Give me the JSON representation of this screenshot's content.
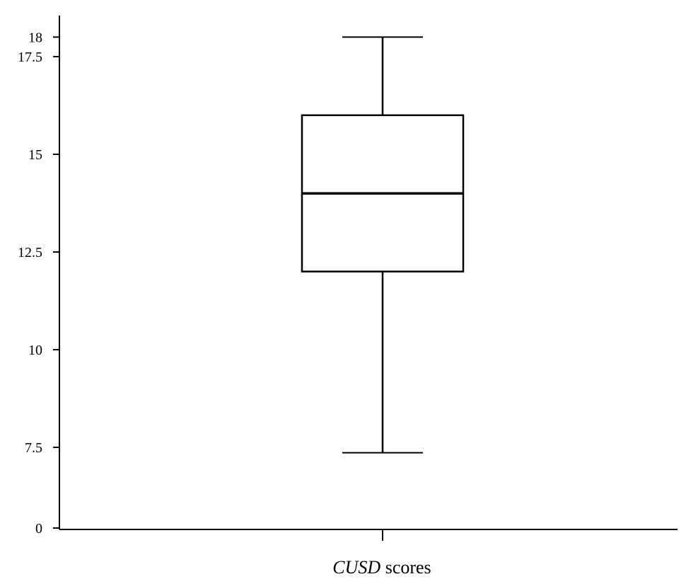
{
  "chart_data": {
    "type": "box",
    "title": "",
    "ylabel": "",
    "xlabel": {
      "italic": "CUSD",
      "rest": " scores"
    },
    "y_ticks": [
      {
        "value": 0,
        "label": "0"
      },
      {
        "value": 7.5,
        "label": "7.5"
      },
      {
        "value": 10,
        "label": "10"
      },
      {
        "value": 12.5,
        "label": "12.5"
      },
      {
        "value": 15,
        "label": "15"
      },
      {
        "value": 17.5,
        "label": "17.5"
      },
      {
        "value": 18,
        "label": "18"
      }
    ],
    "box": {
      "whisker_low": 7,
      "q1": 12,
      "median": 14,
      "q3": 16,
      "whisker_high": 18
    },
    "grid": false,
    "legend": "none",
    "colors": {
      "stroke": "#000000",
      "background": "#ffffff"
    }
  }
}
